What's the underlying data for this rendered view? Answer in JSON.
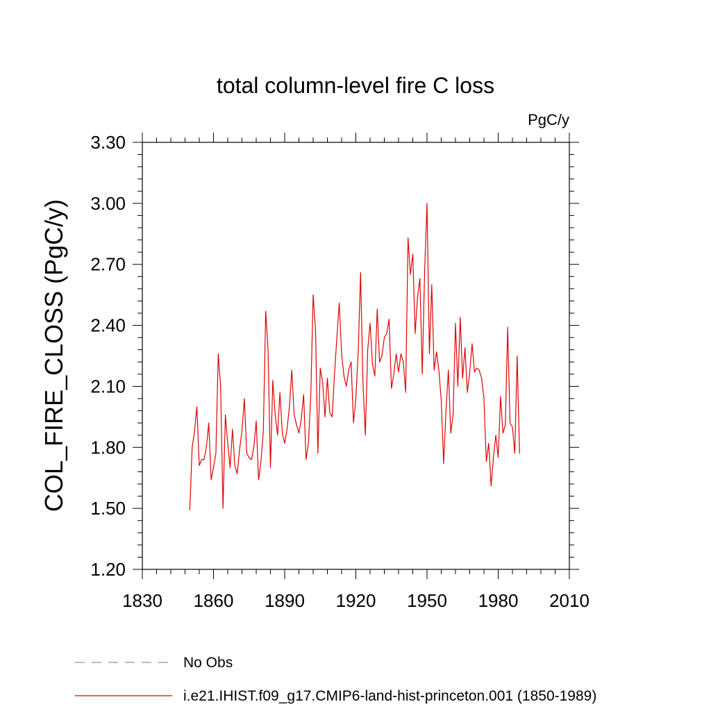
{
  "chart_data": {
    "type": "line",
    "title": "total column-level fire C loss",
    "units": "PgC/y",
    "xlabel": "",
    "ylabel": "COL_FIRE_CLOSS  (PgC/y)",
    "xlim": [
      1830,
      2010
    ],
    "ylim": [
      1.2,
      3.3
    ],
    "x_ticks": [
      1830,
      1860,
      1890,
      1920,
      1950,
      1980,
      2010
    ],
    "x_tick_labels": [
      "1830",
      "1860",
      "1890",
      "1920",
      "1950",
      "1980",
      "2010"
    ],
    "y_ticks": [
      1.2,
      1.5,
      1.8,
      2.1,
      2.4,
      2.7,
      3.0,
      3.3
    ],
    "y_tick_labels": [
      "1.20",
      "1.50",
      "1.80",
      "2.10",
      "2.40",
      "2.70",
      "3.00",
      "3.30"
    ],
    "grid": false,
    "legend_position": "bottom",
    "series": [
      {
        "name": "No Obs",
        "color": "#8a8fbf",
        "style": "dashed",
        "x": [],
        "values": []
      },
      {
        "name": "i.e21.IHIST.f09_g17.CMIP6-land-hist-princeton.001 (1850-1989)",
        "color": "#e00000",
        "style": "solid",
        "x": [
          1850,
          1851,
          1852,
          1853,
          1854,
          1855,
          1856,
          1857,
          1858,
          1859,
          1860,
          1861,
          1862,
          1863,
          1864,
          1865,
          1866,
          1867,
          1868,
          1869,
          1870,
          1871,
          1872,
          1873,
          1874,
          1875,
          1876,
          1877,
          1878,
          1879,
          1880,
          1881,
          1882,
          1883,
          1884,
          1885,
          1886,
          1887,
          1888,
          1889,
          1890,
          1891,
          1892,
          1893,
          1894,
          1895,
          1896,
          1897,
          1898,
          1899,
          1900,
          1901,
          1902,
          1903,
          1904,
          1905,
          1906,
          1907,
          1908,
          1909,
          1910,
          1911,
          1912,
          1913,
          1914,
          1915,
          1916,
          1917,
          1918,
          1919,
          1920,
          1921,
          1922,
          1923,
          1924,
          1925,
          1926,
          1927,
          1928,
          1929,
          1930,
          1931,
          1932,
          1933,
          1934,
          1935,
          1936,
          1937,
          1938,
          1939,
          1940,
          1941,
          1942,
          1943,
          1944,
          1945,
          1946,
          1947,
          1948,
          1949,
          1950,
          1951,
          1952,
          1953,
          1954,
          1955,
          1956,
          1957,
          1958,
          1959,
          1960,
          1961,
          1962,
          1963,
          1964,
          1965,
          1966,
          1967,
          1968,
          1969,
          1970,
          1971,
          1972,
          1973,
          1974,
          1975,
          1976,
          1977,
          1978,
          1979,
          1980,
          1981,
          1982,
          1983,
          1984,
          1985,
          1986,
          1987,
          1988,
          1989
        ],
        "values": [
          1.49,
          1.8,
          1.88,
          2.0,
          1.71,
          1.74,
          1.74,
          1.8,
          1.92,
          1.64,
          1.7,
          1.77,
          2.26,
          2.1,
          1.5,
          1.96,
          1.82,
          1.7,
          1.89,
          1.71,
          1.67,
          1.79,
          1.88,
          2.04,
          1.77,
          1.75,
          1.74,
          1.8,
          1.93,
          1.64,
          1.73,
          1.88,
          2.47,
          2.28,
          1.7,
          2.13,
          1.96,
          1.86,
          2.07,
          1.87,
          1.82,
          1.89,
          2.0,
          2.18,
          1.96,
          1.91,
          1.87,
          1.94,
          2.06,
          1.74,
          1.82,
          2.05,
          2.55,
          2.38,
          1.77,
          2.19,
          2.12,
          1.95,
          2.14,
          1.97,
          1.95,
          2.16,
          2.34,
          2.51,
          2.26,
          2.15,
          2.1,
          2.18,
          2.22,
          1.92,
          2.04,
          2.27,
          2.66,
          2.12,
          1.86,
          2.28,
          2.41,
          2.21,
          2.15,
          2.48,
          2.22,
          2.25,
          2.34,
          2.36,
          2.43,
          2.09,
          2.16,
          2.26,
          2.17,
          2.26,
          2.22,
          2.07,
          2.83,
          2.65,
          2.75,
          2.36,
          2.54,
          2.63,
          2.16,
          2.67,
          3.0,
          2.26,
          2.6,
          2.18,
          2.27,
          2.18,
          2.03,
          1.72,
          1.98,
          2.18,
          1.87,
          1.96,
          2.41,
          2.1,
          2.44,
          2.14,
          2.29,
          2.07,
          2.17,
          2.31,
          2.17,
          2.19,
          2.18,
          2.14,
          2.04,
          1.73,
          1.82,
          1.61,
          1.75,
          1.86,
          1.75,
          2.05,
          1.87,
          1.91,
          2.39,
          1.92,
          1.9,
          1.77,
          2.25,
          1.77
        ]
      }
    ]
  }
}
